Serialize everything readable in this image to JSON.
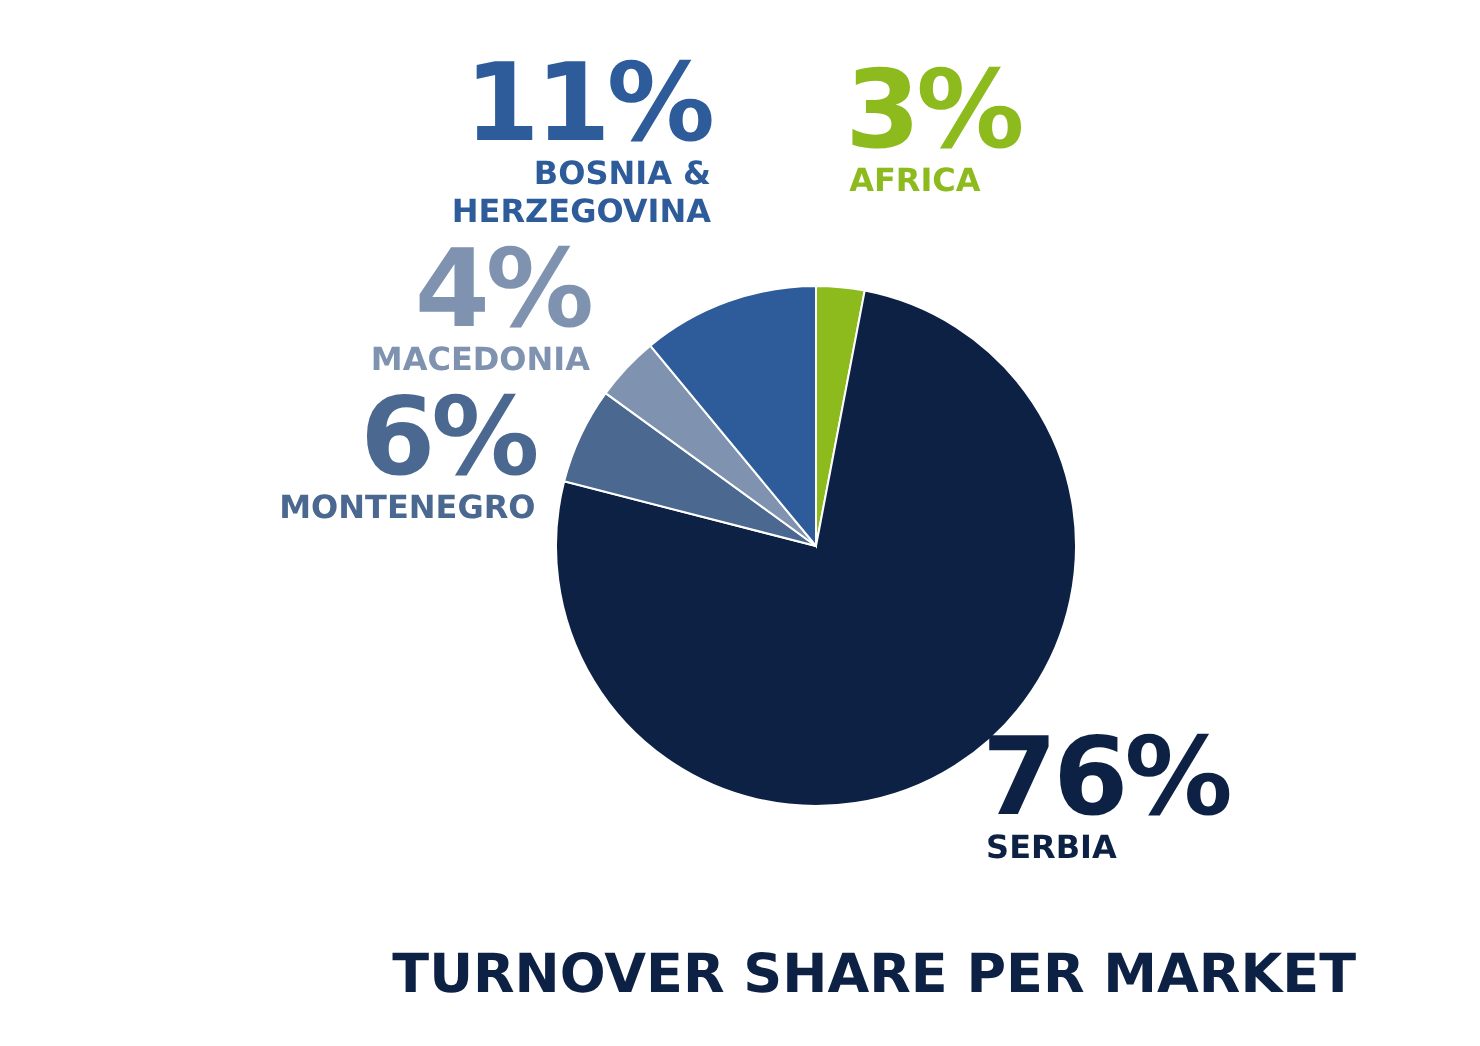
{
  "chart_data": {
    "type": "pie",
    "title": "TURNOVER SHARE PER MARKET",
    "categories": [
      "AFRICA",
      "SERBIA",
      "MONTENEGRO",
      "MACEDONIA",
      "BOSNIA & HERZEGOVINA"
    ],
    "values": [
      3,
      76,
      6,
      4,
      11
    ],
    "value_labels": [
      "3%",
      "76%",
      "6%",
      "4%",
      "11%"
    ],
    "colors": [
      "#8dbb1e",
      "#0d2145",
      "#4a6890",
      "#7f93b0",
      "#2e5c9a"
    ]
  }
}
